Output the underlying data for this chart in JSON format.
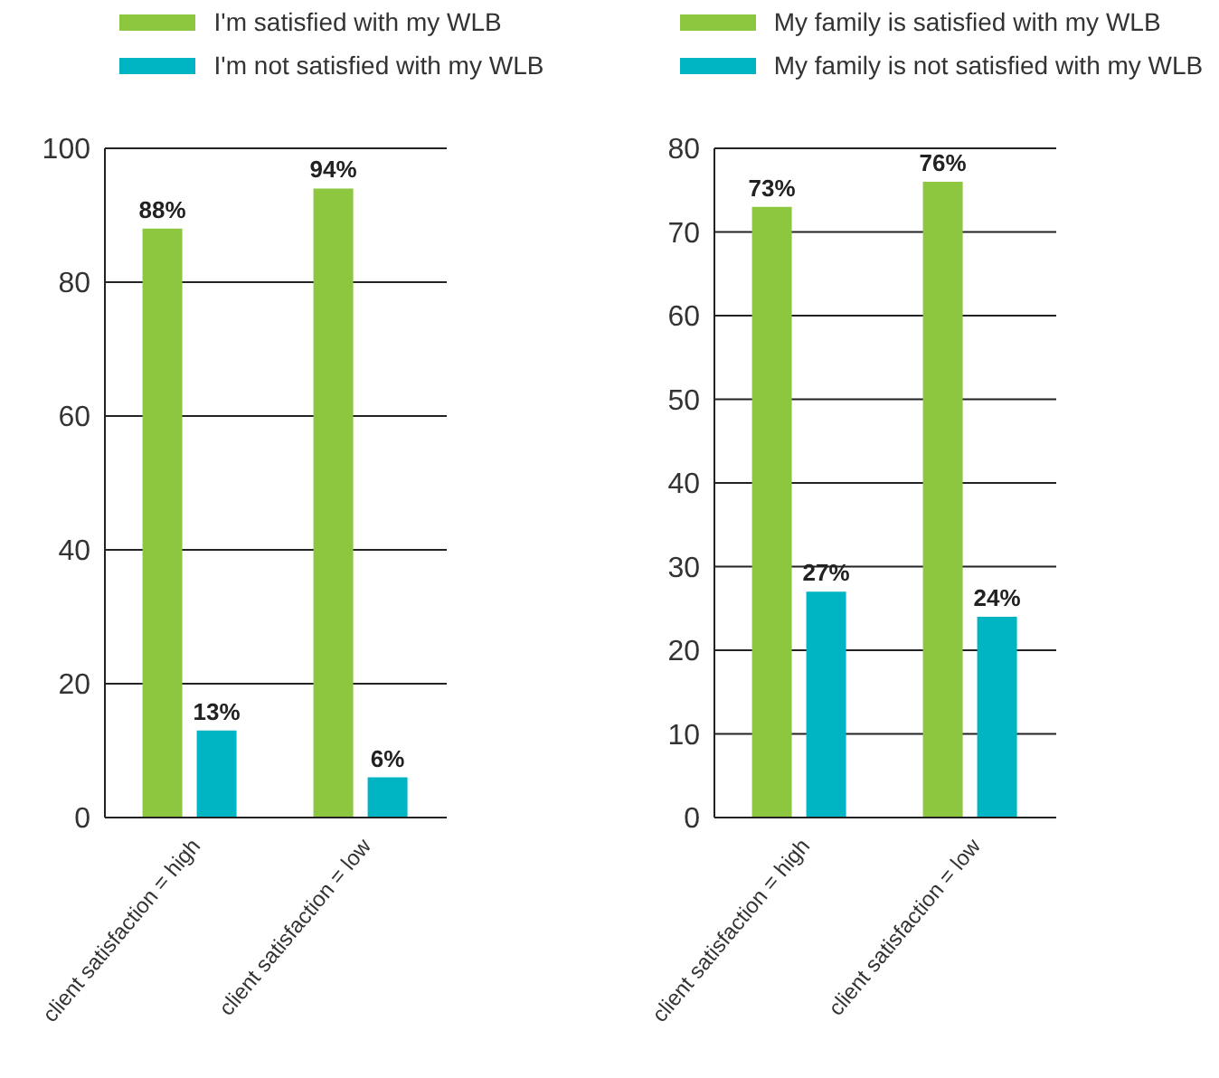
{
  "chart_data": [
    {
      "type": "bar",
      "categories": [
        "client satisfaction = high",
        "client satisfaction = low"
      ],
      "series": [
        {
          "name": "I'm satisfied with my WLB",
          "color": "#8dc63f",
          "values": [
            88,
            94
          ],
          "value_labels": [
            "88%",
            "94%"
          ]
        },
        {
          "name": "I'm not satisfied with my WLB",
          "color": "#00b5c3",
          "values": [
            13,
            6
          ],
          "value_labels": [
            "13%",
            "6%"
          ]
        }
      ],
      "ylim": [
        0,
        100
      ],
      "yticks": [
        0,
        20,
        40,
        60,
        80,
        100
      ],
      "grid": "y",
      "legend": "top"
    },
    {
      "type": "bar",
      "categories": [
        "client satisfaction = high",
        "client satisfaction = low"
      ],
      "series": [
        {
          "name": "My family is satisfied with my WLB",
          "color": "#8dc63f",
          "values": [
            73,
            76
          ],
          "value_labels": [
            "73%",
            "76%"
          ]
        },
        {
          "name": "My family is not satisfied with my WLB",
          "color": "#00b5c3",
          "values": [
            27,
            24
          ],
          "value_labels": [
            "27%",
            "24%"
          ]
        }
      ],
      "ylim": [
        0,
        80
      ],
      "yticks": [
        0,
        10,
        20,
        30,
        40,
        50,
        60,
        70,
        80
      ],
      "grid": "y",
      "legend": "top"
    }
  ]
}
